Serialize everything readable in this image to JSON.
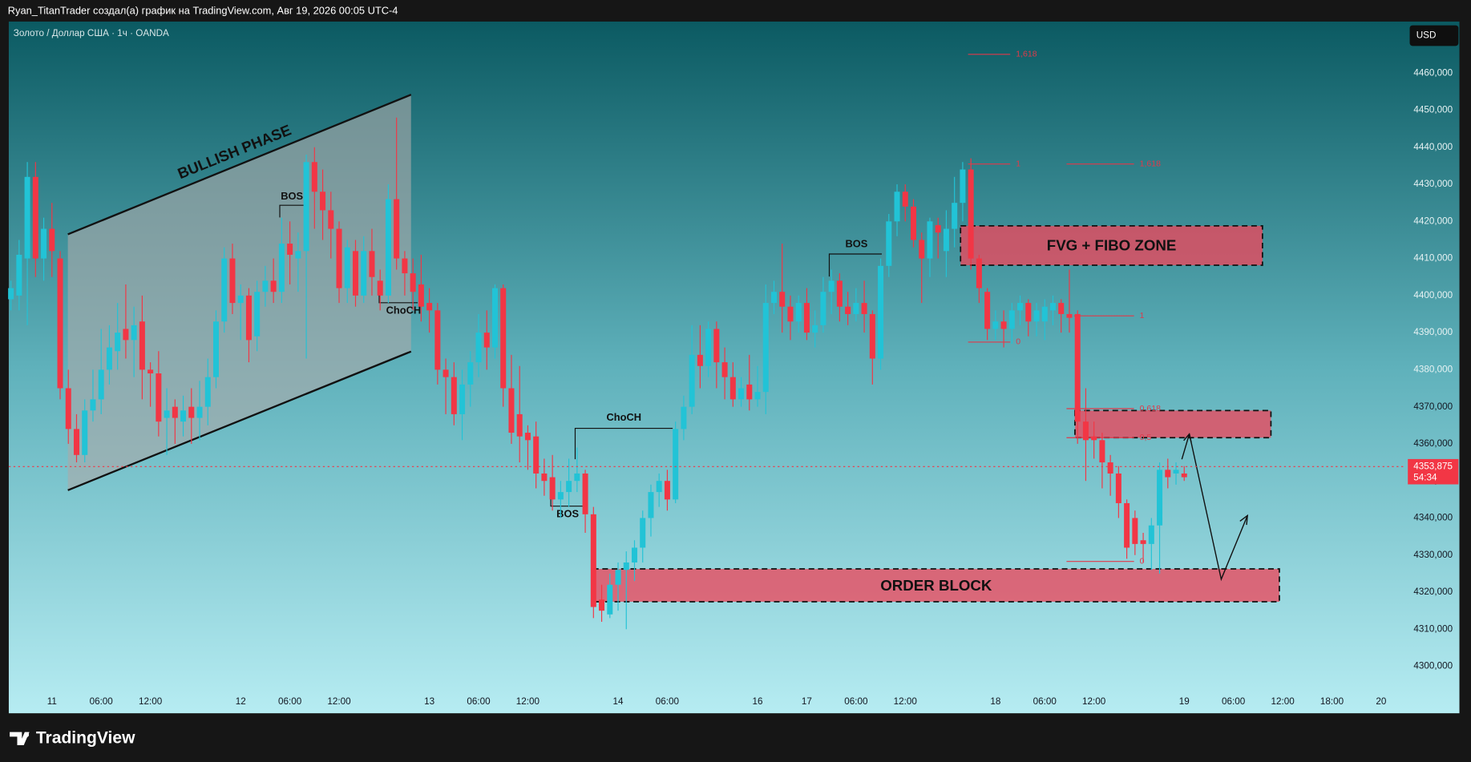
{
  "header": "Ryan_TitanTrader создал(а) график на TradingView.com, Авг 19, 2026 00:05 UTC-4",
  "footer_brand": "TradingView",
  "chart_data": {
    "type": "candlestick",
    "title": "Золото / Доллар США · 1ч · OANDA",
    "currency_button": "USD",
    "up_color": "#22c3d6",
    "down_color": "#f23645",
    "grid": false,
    "xlim": [
      -5.26,
      164.91
    ],
    "ylim": [
      4293.4,
      4473.9
    ],
    "xticks": [
      {
        "value": 0,
        "label": "11"
      },
      {
        "value": 6,
        "label": "06:00"
      },
      {
        "value": 12,
        "label": "12:00"
      },
      {
        "value": 23,
        "label": "12"
      },
      {
        "value": 29,
        "label": "06:00"
      },
      {
        "value": 35,
        "label": "12:00"
      },
      {
        "value": 46,
        "label": "13"
      },
      {
        "value": 52,
        "label": "06:00"
      },
      {
        "value": 58,
        "label": "12:00"
      },
      {
        "value": 69,
        "label": "14"
      },
      {
        "value": 75,
        "label": "06:00"
      },
      {
        "value": 86,
        "label": "16"
      },
      {
        "value": 92,
        "label": "17"
      },
      {
        "value": 98,
        "label": "06:00"
      },
      {
        "value": 104,
        "label": "12:00"
      },
      {
        "value": 115,
        "label": "18"
      },
      {
        "value": 121,
        "label": "06:00"
      },
      {
        "value": 127,
        "label": "12:00"
      },
      {
        "value": 138,
        "label": "19"
      },
      {
        "value": 144,
        "label": "06:00"
      },
      {
        "value": 150,
        "label": "12:00"
      },
      {
        "value": 156,
        "label": "18:00"
      },
      {
        "value": 162,
        "label": "20"
      }
    ],
    "yticks": [
      {
        "value": 4300,
        "label": "4300,000"
      },
      {
        "value": 4310,
        "label": "4310,000"
      },
      {
        "value": 4320,
        "label": "4320,000"
      },
      {
        "value": 4330,
        "label": "4330,000"
      },
      {
        "value": 4340,
        "label": "4340,000"
      },
      {
        "value": 4350,
        "label": "4350,000"
      },
      {
        "value": 4360,
        "label": "4360,000"
      },
      {
        "value": 4370,
        "label": "4370,000"
      },
      {
        "value": 4380,
        "label": "4380,000"
      },
      {
        "value": 4390,
        "label": "4390,000"
      },
      {
        "value": 4400,
        "label": "4400,000"
      },
      {
        "value": 4410,
        "label": "4410,000"
      },
      {
        "value": 4420,
        "label": "4420,000"
      },
      {
        "value": 4430,
        "label": "4430,000"
      },
      {
        "value": 4440,
        "label": "4440,000"
      },
      {
        "value": 4450,
        "label": "4450,000"
      },
      {
        "value": 4460,
        "label": "4460,000"
      }
    ],
    "last_price": {
      "value": 4353.875,
      "label": "4353,875"
    },
    "countdown": "54:34",
    "x": [
      -5,
      -4,
      -3,
      -2,
      -1,
      0,
      1,
      2,
      3,
      4,
      5,
      6,
      7,
      8,
      9,
      10,
      11,
      12,
      13,
      14,
      15,
      16,
      17,
      18,
      19,
      20,
      21,
      22,
      23,
      24,
      25,
      26,
      27,
      28,
      29,
      30,
      31,
      32,
      33,
      34,
      35,
      36,
      37,
      38,
      39,
      40,
      41,
      42,
      43,
      44,
      45,
      46,
      47,
      48,
      49,
      50,
      51,
      52,
      53,
      54,
      55,
      56,
      57,
      58,
      59,
      60,
      61,
      62,
      63,
      64,
      65,
      66,
      67,
      68,
      69,
      70,
      71,
      72,
      73,
      74,
      75,
      76,
      77,
      78,
      79,
      80,
      81,
      82,
      83,
      84,
      85,
      86,
      87,
      88,
      89,
      90,
      91,
      92,
      93,
      94,
      95,
      96,
      97,
      98,
      99,
      100,
      101,
      102,
      103,
      104,
      105,
      106,
      107,
      108,
      109,
      110,
      111,
      112,
      113,
      114,
      115,
      116,
      117,
      118,
      119,
      120,
      121,
      122,
      123,
      124,
      125,
      126,
      127,
      128,
      129,
      130,
      131,
      132,
      133,
      134,
      135,
      136,
      137,
      138
    ],
    "open": [
      4399,
      4400,
      4410,
      4432,
      4410,
      4418,
      4410,
      4375,
      4364,
      4357,
      4369,
      4372,
      4380,
      4385,
      4391,
      4388,
      4393,
      4380,
      4379,
      4367,
      4370,
      4366,
      4370,
      4367,
      4370,
      4378,
      4393,
      4410,
      4398,
      4400,
      4389,
      4401,
      4404,
      4401,
      4414,
      4410,
      4412,
      4436,
      4428,
      4423,
      4418,
      4402,
      4412,
      4400,
      4412,
      4404,
      4400,
      4426,
      4410,
      4406,
      4403,
      4398,
      4396,
      4380,
      4378,
      4368,
      4376,
      4382,
      4390,
      4386,
      4402,
      4375,
      4368,
      4363,
      4362,
      4352,
      4351,
      4345,
      4347,
      4350,
      4352,
      4341,
      4318,
      4314,
      4322,
      4326,
      4328,
      4332,
      4340,
      4347,
      4350,
      4345,
      4364,
      4370,
      4384,
      4381,
      4391,
      4382,
      4378,
      4372,
      4376,
      4372,
      4374,
      4398,
      4401,
      4397,
      4393,
      4398,
      4390,
      4392,
      4401,
      4404,
      4397,
      4395,
      4398,
      4395,
      4383,
      4408,
      4420,
      4428,
      4424,
      4415,
      4410,
      4419,
      4412,
      4418,
      4425,
      4434,
      4410,
      4401,
      4391,
      4393,
      4391,
      4396,
      4398,
      4393,
      4393,
      4396,
      4398,
      4395,
      4395,
      4366,
      4362,
      4361,
      4355,
      4352,
      4344,
      4340,
      4334,
      4333,
      4338,
      4353,
      4352,
      4352
    ],
    "high": [
      4404,
      4415,
      4436,
      4436,
      4421,
      4425,
      4412,
      4380,
      4368,
      4372,
      4380,
      4391,
      4392,
      4398,
      4403,
      4397,
      4400,
      4382,
      4385,
      4375,
      4372,
      4373,
      4375,
      4377,
      4383,
      4396,
      4413,
      4414,
      4403,
      4402,
      4404,
      4408,
      4410,
      4421,
      4420,
      4417,
      4438,
      4440,
      4434,
      4428,
      4420,
      4415,
      4415,
      4416,
      4418,
      4407,
      4430,
      4448,
      4412,
      4410,
      4411,
      4402,
      4398,
      4383,
      4382,
      4380,
      4385,
      4395,
      4396,
      4403,
      4403,
      4384,
      4381,
      4365,
      4366,
      4356,
      4357,
      4350,
      4356,
      4359,
      4353,
      4343,
      4322,
      4325,
      4328,
      4331,
      4334,
      4342,
      4349,
      4352,
      4353,
      4366,
      4373,
      4392,
      4392,
      4393,
      4393,
      4386,
      4382,
      4378,
      4384,
      4381,
      4403,
      4404,
      4414,
      4400,
      4400,
      4402,
      4396,
      4405,
      4407,
      4406,
      4401,
      4402,
      4404,
      4396,
      4410,
      4422,
      4430,
      4430,
      4426,
      4417,
      4421,
      4421,
      4423,
      4432,
      4436,
      4437,
      4411,
      4402,
      4396,
      4396,
      4398,
      4400,
      4399,
      4398,
      4399,
      4400,
      4399,
      4407,
      4396,
      4375,
      4366,
      4363,
      4357,
      4354,
      4345,
      4342,
      4336,
      4340,
      4355,
      4356,
      4355,
      4354
    ],
    "low": [
      4396,
      4396,
      4392,
      4405,
      4404,
      4405,
      4372,
      4360,
      4355,
      4355,
      4366,
      4368,
      4376,
      4380,
      4383,
      4378,
      4372,
      4370,
      4362,
      4357,
      4360,
      4362,
      4360,
      4361,
      4365,
      4375,
      4390,
      4395,
      4388,
      4382,
      4385,
      4397,
      4398,
      4398,
      4403,
      4401,
      4383,
      4418,
      4415,
      4410,
      4398,
      4398,
      4397,
      4398,
      4400,
      4396,
      4398,
      4407,
      4400,
      4396,
      4393,
      4390,
      4376,
      4368,
      4365,
      4361,
      4370,
      4378,
      4380,
      4383,
      4370,
      4360,
      4355,
      4353,
      4348,
      4346,
      4342,
      4340,
      4343,
      4347,
      4336,
      4313,
      4312,
      4313,
      4315,
      4310,
      4323,
      4328,
      4335,
      4343,
      4342,
      4344,
      4361,
      4368,
      4375,
      4378,
      4375,
      4372,
      4370,
      4370,
      4369,
      4370,
      4368,
      4395,
      4390,
      4388,
      4390,
      4388,
      4386,
      4390,
      4395,
      4393,
      4392,
      4393,
      4390,
      4376,
      4380,
      4405,
      4416,
      4420,
      4413,
      4398,
      4405,
      4410,
      4405,
      4413,
      4420,
      4407,
      4398,
      4388,
      4388,
      4386,
      4387,
      4392,
      4389,
      4389,
      4388,
      4392,
      4390,
      4390,
      4360,
      4350,
      4356,
      4348,
      4346,
      4340,
      4329,
      4330,
      4328,
      4326,
      4325,
      4348,
      4349,
      4350
    ],
    "close": [
      4402,
      4411,
      4432,
      4410,
      4418,
      4412,
      4375,
      4364,
      4357,
      4369,
      4372,
      4380,
      4386,
      4390,
      4388,
      4392,
      4380,
      4379,
      4366,
      4369,
      4367,
      4369,
      4367,
      4370,
      4378,
      4393,
      4410,
      4398,
      4400,
      4388,
      4401,
      4404,
      4401,
      4414,
      4411,
      4412,
      4436,
      4428,
      4423,
      4418,
      4402,
      4413,
      4400,
      4412,
      4405,
      4400,
      4426,
      4410,
      4406,
      4401,
      4397,
      4396,
      4380,
      4378,
      4368,
      4376,
      4382,
      4390,
      4386,
      4402,
      4375,
      4363,
      4362,
      4361,
      4352,
      4350,
      4345,
      4347,
      4350,
      4352,
      4341,
      4316,
      4315,
      4322,
      4326,
      4328,
      4332,
      4340,
      4347,
      4350,
      4345,
      4364,
      4370,
      4384,
      4381,
      4391,
      4382,
      4378,
      4372,
      4375,
      4372,
      4374,
      4398,
      4401,
      4397,
      4393,
      4398,
      4390,
      4392,
      4401,
      4404,
      4397,
      4395,
      4398,
      4395,
      4383,
      4408,
      4420,
      4428,
      4424,
      4415,
      4410,
      4420,
      4417,
      4418,
      4425,
      4434,
      4410,
      4402,
      4391,
      4393,
      4391,
      4396,
      4398,
      4393,
      4396,
      4397,
      4398,
      4395,
      4394,
      4366,
      4361,
      4361,
      4355,
      4352,
      4344,
      4332,
      4333,
      4333,
      4338,
      4353,
      4351,
      4353,
      4351
    ],
    "annotations": {
      "phase": "BULLISH PHASE",
      "structure": [
        "BOS",
        "ChoCH",
        "ChoCH",
        "BOS",
        "BOS"
      ],
      "zones": [
        "FVG + FIBO ZONE",
        "ORDER BLOCK"
      ],
      "fib": [
        "1,618",
        "1",
        "0",
        "1,618",
        "1",
        "0,618",
        "0,5",
        "0"
      ]
    }
  }
}
